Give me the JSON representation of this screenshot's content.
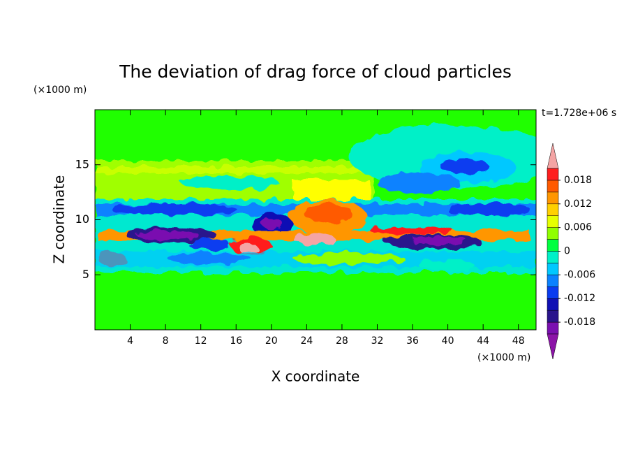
{
  "chart_data": {
    "type": "contour",
    "title": "The deviation of drag force of cloud particles",
    "x_label": "X coordinate",
    "y_label": "Z coordinate",
    "x_unit": "(×1000 m)",
    "y_unit": "(×1000 m)",
    "time_label": "t=1.728e+06 s",
    "xlim": [
      0,
      50
    ],
    "xticks": [
      4,
      8,
      12,
      16,
      20,
      24,
      28,
      32,
      36,
      40,
      44,
      48
    ],
    "ylim": [
      0,
      20
    ],
    "yticks": [
      5,
      10,
      15
    ],
    "colorbar": {
      "clim": [
        -0.021,
        0.021
      ],
      "ticks": [
        -0.018,
        -0.012,
        -0.006,
        0,
        0.006,
        0.012,
        0.018
      ],
      "colors": [
        "#7a10b0",
        "#2a148c",
        "#1010b4",
        "#0a3cf0",
        "#0a82ff",
        "#00c8ff",
        "#00f0c8",
        "#00ff40",
        "#90ff00",
        "#e6ff00",
        "#ffd000",
        "#ff9600",
        "#ff5a00",
        "#ff1e1e"
      ],
      "under_color": "#8c14a8",
      "over_color": "#f4a4a4"
    }
  }
}
